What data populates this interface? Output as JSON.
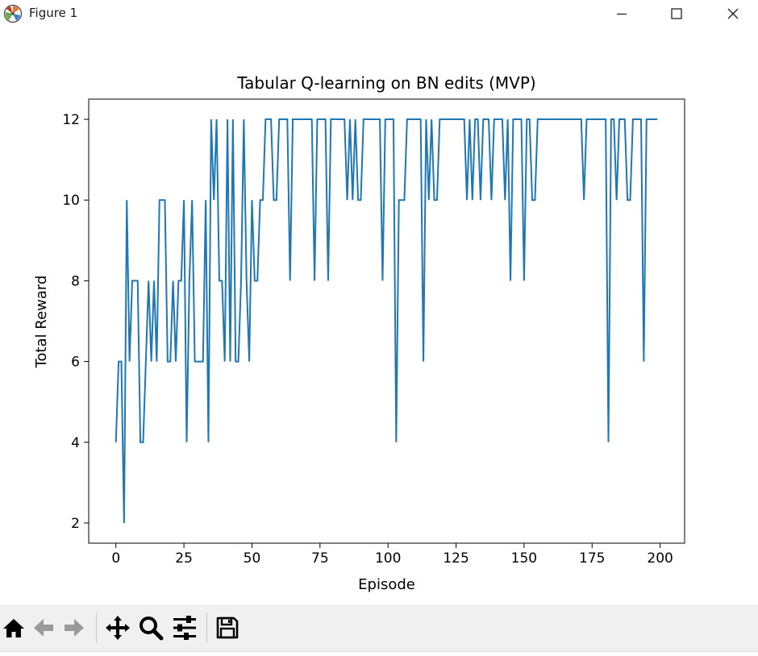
{
  "window": {
    "title": "Figure 1",
    "icons": [
      "matplotlib-logo-icon",
      "minimize-icon",
      "maximize-icon",
      "close-icon"
    ]
  },
  "toolbar": {
    "buttons": [
      "home-icon",
      "back-icon",
      "forward-icon",
      "pan-icon",
      "zoom-icon",
      "configure-subplots-icon",
      "save-icon"
    ]
  },
  "chart_data": {
    "type": "line",
    "title": "Tabular Q-learning on BN edits (MVP)",
    "xlabel": "Episode",
    "ylabel": "Total Reward",
    "xlim": [
      -10,
      209
    ],
    "ylim": [
      1.5,
      12.5
    ],
    "xticks": [
      0,
      25,
      50,
      75,
      100,
      125,
      150,
      175,
      200
    ],
    "yticks": [
      2,
      4,
      6,
      8,
      10,
      12
    ],
    "grid": false,
    "line_color": "#1f77b4",
    "series": [
      {
        "x": [
          0,
          1,
          2,
          3,
          4,
          5,
          6,
          7,
          8,
          9,
          10,
          11,
          12,
          13,
          14,
          15,
          16,
          17,
          18,
          19,
          20,
          21,
          22,
          23,
          24,
          25,
          26,
          27,
          28,
          29,
          30,
          31,
          32,
          33,
          34,
          35,
          36,
          37,
          38,
          39,
          40,
          41,
          42,
          43,
          44,
          45,
          46,
          47,
          48,
          49,
          50,
          51,
          52,
          53,
          54,
          55,
          56,
          57,
          58,
          59,
          60,
          61,
          62,
          63,
          64,
          65,
          66,
          67,
          68,
          69,
          70,
          71,
          72,
          73,
          74,
          75,
          76,
          77,
          78,
          79,
          80,
          81,
          82,
          83,
          84,
          85,
          86,
          87,
          88,
          89,
          90,
          91,
          92,
          93,
          94,
          95,
          96,
          97,
          98,
          99,
          100,
          101,
          102,
          103,
          104,
          105,
          106,
          107,
          108,
          109,
          110,
          111,
          112,
          113,
          114,
          115,
          116,
          117,
          118,
          119,
          120,
          121,
          122,
          123,
          124,
          125,
          126,
          127,
          128,
          129,
          130,
          131,
          132,
          133,
          134,
          135,
          136,
          137,
          138,
          139,
          140,
          141,
          142,
          143,
          144,
          145,
          146,
          147,
          148,
          149,
          150,
          151,
          152,
          153,
          154,
          155,
          156,
          157,
          158,
          159,
          160,
          161,
          162,
          163,
          164,
          165,
          166,
          167,
          168,
          169,
          170,
          171,
          172,
          173,
          174,
          175,
          176,
          177,
          178,
          179,
          180,
          181,
          182,
          183,
          184,
          185,
          186,
          187,
          188,
          189,
          190,
          191,
          192,
          193,
          194,
          195,
          196,
          197,
          198,
          199
        ],
        "values": [
          4,
          6,
          6,
          2,
          10,
          6,
          8,
          8,
          8,
          4,
          4,
          6,
          8,
          6,
          8,
          6,
          10,
          10,
          10,
          6,
          6,
          8,
          6,
          8,
          8,
          10,
          4,
          8,
          10,
          6,
          6,
          6,
          6,
          10,
          4,
          12,
          10,
          12,
          8,
          8,
          6,
          12,
          6,
          12,
          6,
          6,
          8,
          12,
          8,
          6,
          10,
          8,
          8,
          10,
          10,
          12,
          12,
          12,
          10,
          10,
          12,
          12,
          12,
          12,
          8,
          12,
          12,
          12,
          12,
          12,
          12,
          12,
          12,
          8,
          12,
          12,
          12,
          12,
          8,
          12,
          12,
          12,
          12,
          12,
          12,
          10,
          12,
          10,
          12,
          10,
          10,
          12,
          12,
          12,
          12,
          12,
          12,
          12,
          8,
          12,
          12,
          12,
          12,
          4,
          10,
          10,
          10,
          12,
          12,
          12,
          12,
          12,
          12,
          6,
          12,
          10,
          12,
          10,
          10,
          12,
          12,
          12,
          12,
          12,
          12,
          12,
          12,
          12,
          12,
          10,
          12,
          10,
          12,
          12,
          10,
          12,
          12,
          12,
          10,
          12,
          12,
          12,
          12,
          10,
          12,
          8,
          12,
          12,
          12,
          12,
          8,
          12,
          12,
          10,
          10,
          12,
          12,
          12,
          12,
          12,
          12,
          12,
          12,
          12,
          12,
          12,
          12,
          12,
          12,
          12,
          12,
          12,
          10,
          12,
          12,
          12,
          12,
          12,
          12,
          12,
          12,
          4,
          12,
          12,
          10,
          12,
          12,
          12,
          10,
          10,
          12,
          12,
          12,
          12,
          6,
          12,
          12,
          12,
          12,
          12
        ]
      }
    ]
  }
}
